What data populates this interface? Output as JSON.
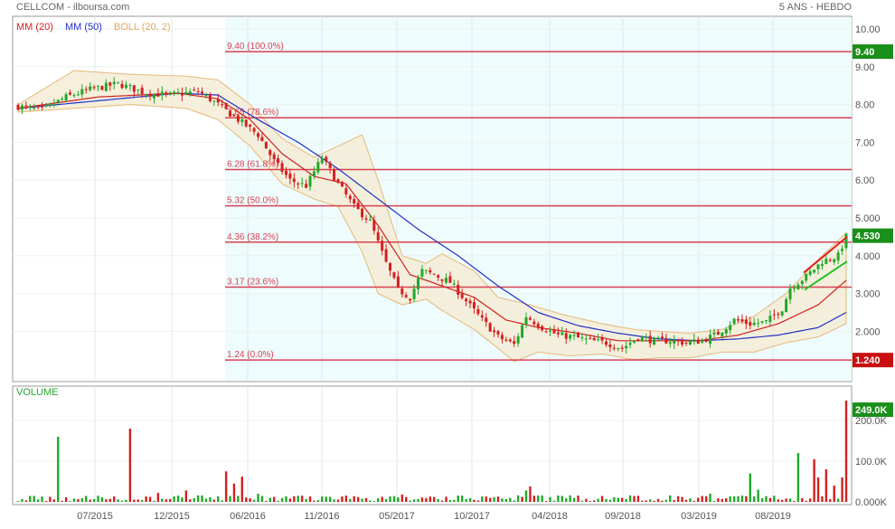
{
  "header": {
    "title": "CELLCOM - ilboursa.com",
    "period": "5 ANS - HEBDO"
  },
  "legend": [
    {
      "label": "MM (20)",
      "color": "#d42020"
    },
    {
      "label": "MM (50)",
      "color": "#2230c8"
    },
    {
      "label": "BOLL (20, 2)",
      "color": "#e8a860"
    }
  ],
  "colors": {
    "up": "#22a82a",
    "down": "#d42020",
    "fib_line": "#d94050",
    "bollinger_fill": "#f3ecd6",
    "fib_zone": "#eefcfd",
    "price_tag_green": "#1a8f1a",
    "price_tag_red": "#c81010"
  },
  "chart_data": [
    {
      "type": "line",
      "name_key": "price",
      "y_ticks": [
        "10.00",
        "9.00",
        "8.00",
        "7.00",
        "6.00",
        "5.000",
        "4.000",
        "3.000",
        "2.000"
      ],
      "ylim": [
        1.0,
        10.0
      ],
      "x_ticks": [
        "07/2015",
        "12/2015",
        "06/2016",
        "11/2016",
        "05/2017",
        "10/2017",
        "04/2018",
        "09/2018",
        "03/2019",
        "08/2019"
      ],
      "close_anchors": [
        [
          0,
          7.95
        ],
        [
          6,
          7.85
        ],
        [
          12,
          8.2
        ],
        [
          18,
          8.4
        ],
        [
          25,
          8.55
        ],
        [
          32,
          8.3
        ],
        [
          38,
          8.25
        ],
        [
          45,
          8.35
        ],
        [
          50,
          8.0
        ],
        [
          55,
          7.6
        ],
        [
          60,
          7.2
        ],
        [
          64,
          6.5
        ],
        [
          68,
          6.0
        ],
        [
          72,
          5.85
        ],
        [
          76,
          6.6
        ],
        [
          80,
          5.9
        ],
        [
          84,
          5.3
        ],
        [
          88,
          4.9
        ],
        [
          92,
          3.8
        ],
        [
          95,
          3.1
        ],
        [
          98,
          2.9
        ],
        [
          101,
          3.6
        ],
        [
          104,
          3.5
        ],
        [
          108,
          3.3
        ],
        [
          112,
          2.8
        ],
        [
          116,
          2.3
        ],
        [
          120,
          1.85
        ],
        [
          124,
          1.65
        ],
        [
          127,
          2.4
        ],
        [
          131,
          2.1
        ],
        [
          135,
          1.9
        ],
        [
          139,
          1.85
        ],
        [
          143,
          1.75
        ],
        [
          147,
          1.7
        ],
        [
          151,
          1.55
        ],
        [
          155,
          1.85
        ],
        [
          159,
          1.75
        ],
        [
          163,
          1.75
        ],
        [
          167,
          1.7
        ],
        [
          171,
          1.75
        ],
        [
          175,
          1.95
        ],
        [
          179,
          2.3
        ],
        [
          183,
          2.2
        ],
        [
          187,
          2.25
        ],
        [
          191,
          2.6
        ],
        [
          193,
          3.15
        ],
        [
          197,
          3.45
        ],
        [
          201,
          3.85
        ],
        [
          205,
          4.0
        ],
        [
          207,
          4.5
        ]
      ],
      "ma20_anchors": [
        [
          0,
          7.9
        ],
        [
          20,
          8.2
        ],
        [
          40,
          8.3
        ],
        [
          50,
          8.15
        ],
        [
          58,
          7.6
        ],
        [
          66,
          6.7
        ],
        [
          74,
          6.1
        ],
        [
          82,
          5.9
        ],
        [
          90,
          4.8
        ],
        [
          98,
          3.5
        ],
        [
          106,
          3.2
        ],
        [
          114,
          2.9
        ],
        [
          122,
          2.3
        ],
        [
          130,
          2.1
        ],
        [
          140,
          1.95
        ],
        [
          150,
          1.75
        ],
        [
          160,
          1.75
        ],
        [
          170,
          1.75
        ],
        [
          180,
          1.9
        ],
        [
          190,
          2.2
        ],
        [
          200,
          2.7
        ],
        [
          207,
          3.35
        ]
      ],
      "ma50_anchors": [
        [
          0,
          7.9
        ],
        [
          20,
          8.1
        ],
        [
          40,
          8.3
        ],
        [
          50,
          8.25
        ],
        [
          60,
          7.6
        ],
        [
          70,
          7.0
        ],
        [
          80,
          6.3
        ],
        [
          90,
          5.5
        ],
        [
          100,
          4.7
        ],
        [
          110,
          4.0
        ],
        [
          120,
          3.2
        ],
        [
          130,
          2.5
        ],
        [
          140,
          2.15
        ],
        [
          150,
          1.95
        ],
        [
          160,
          1.8
        ],
        [
          170,
          1.75
        ],
        [
          180,
          1.8
        ],
        [
          190,
          1.9
        ],
        [
          200,
          2.1
        ],
        [
          207,
          2.5
        ]
      ],
      "boll_upper_anchors": [
        [
          0,
          8.0
        ],
        [
          14,
          8.9
        ],
        [
          28,
          8.8
        ],
        [
          42,
          8.75
        ],
        [
          50,
          8.65
        ],
        [
          58,
          8.0
        ],
        [
          66,
          7.1
        ],
        [
          74,
          6.6
        ],
        [
          80,
          6.9
        ],
        [
          86,
          7.2
        ],
        [
          90,
          6.0
        ],
        [
          96,
          4.0
        ],
        [
          102,
          3.8
        ],
        [
          106,
          4.05
        ],
        [
          114,
          3.6
        ],
        [
          120,
          2.9
        ],
        [
          128,
          2.7
        ],
        [
          136,
          2.45
        ],
        [
          146,
          2.2
        ],
        [
          154,
          2.05
        ],
        [
          160,
          2.0
        ],
        [
          168,
          1.95
        ],
        [
          176,
          2.05
        ],
        [
          184,
          2.4
        ],
        [
          192,
          3.0
        ],
        [
          200,
          3.9
        ],
        [
          207,
          4.6
        ]
      ],
      "boll_lower_anchors": [
        [
          0,
          7.8
        ],
        [
          14,
          7.9
        ],
        [
          28,
          8.0
        ],
        [
          42,
          7.9
        ],
        [
          50,
          7.6
        ],
        [
          58,
          6.9
        ],
        [
          66,
          5.9
        ],
        [
          74,
          5.5
        ],
        [
          80,
          5.3
        ],
        [
          86,
          4.1
        ],
        [
          90,
          3.0
        ],
        [
          96,
          2.7
        ],
        [
          102,
          2.85
        ],
        [
          106,
          2.55
        ],
        [
          114,
          2.05
        ],
        [
          120,
          1.55
        ],
        [
          124,
          1.2
        ],
        [
          130,
          1.45
        ],
        [
          138,
          1.35
        ],
        [
          146,
          1.4
        ],
        [
          154,
          1.25
        ],
        [
          160,
          1.3
        ],
        [
          168,
          1.3
        ],
        [
          176,
          1.45
        ],
        [
          184,
          1.45
        ],
        [
          192,
          1.7
        ],
        [
          200,
          1.85
        ],
        [
          207,
          2.2
        ]
      ],
      "fib_levels": [
        {
          "label": "9.40  (100.0%)",
          "value": 9.4
        },
        {
          "label": "7.65  (78.6%)",
          "value": 7.65
        },
        {
          "label": "6.28  (61.8%)",
          "value": 6.28
        },
        {
          "label": "5.32  (50.0%)",
          "value": 5.32
        },
        {
          "label": "4.36  (38.2%)",
          "value": 4.36
        },
        {
          "label": "3.17  (23.6%)",
          "value": 3.17
        },
        {
          "label": "1.24  (0.0%)",
          "value": 1.24
        }
      ],
      "price_tags": [
        {
          "label": "9.40",
          "value": 9.4,
          "color": "#1a8f1a"
        },
        {
          "label": "4.530",
          "value": 4.53,
          "color": "#1a8f1a"
        },
        {
          "label": "1.240",
          "value": 1.24,
          "color": "#c81010"
        }
      ]
    },
    {
      "type": "bar",
      "title": "VOLUME",
      "y_ticks": [
        "200.0K",
        "100.0K",
        "0.000K"
      ],
      "ylim": [
        0,
        250
      ],
      "last_volume_label": "249.0K",
      "spikes": [
        [
          10,
          160
        ],
        [
          28,
          180
        ],
        [
          35,
          22
        ],
        [
          42,
          28
        ],
        [
          52,
          75
        ],
        [
          54,
          45
        ],
        [
          56,
          62
        ],
        [
          60,
          20
        ],
        [
          70,
          15
        ],
        [
          84,
          14
        ],
        [
          96,
          18
        ],
        [
          104,
          12
        ],
        [
          127,
          28
        ],
        [
          128,
          38
        ],
        [
          138,
          16
        ],
        [
          165,
          14
        ],
        [
          173,
          20
        ],
        [
          183,
          70
        ],
        [
          185,
          30
        ],
        [
          195,
          120
        ],
        [
          199,
          105
        ],
        [
          200,
          60
        ],
        [
          202,
          80
        ],
        [
          204,
          40
        ],
        [
          206,
          60
        ],
        [
          207,
          249
        ]
      ]
    }
  ]
}
